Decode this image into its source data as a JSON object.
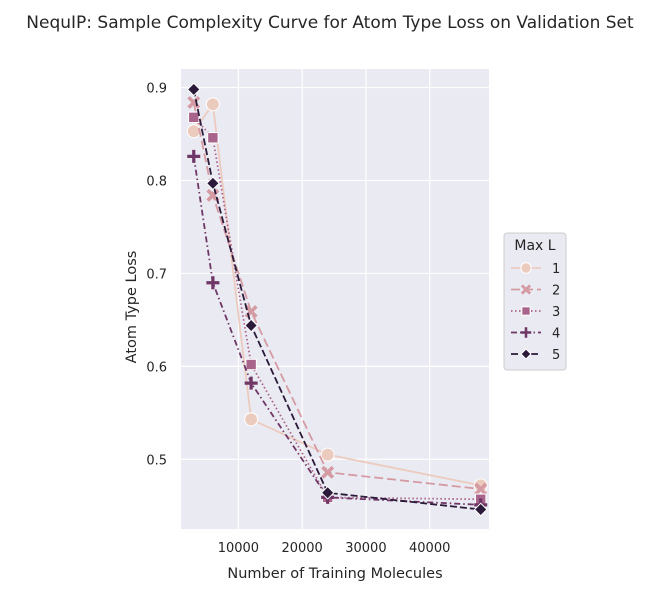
{
  "chart_data": {
    "type": "line",
    "title": "NequIP: Sample Complexity Curve for Atom Type Loss on Validation Set",
    "xlabel": "Number of Training Molecules",
    "ylabel": "Atom Type Loss",
    "xlim": [
      1000,
      49300
    ],
    "ylim": [
      0.425,
      0.92
    ],
    "xticks": [
      10000,
      20000,
      30000,
      40000
    ],
    "xtick_labels": [
      "10000",
      "20000",
      "30000",
      "40000"
    ],
    "yticks": [
      0.5,
      0.6,
      0.7,
      0.8,
      0.9
    ],
    "ytick_labels": [
      "0.5",
      "0.6",
      "0.7",
      "0.8",
      "0.9"
    ],
    "grid": true,
    "legend": {
      "title": "Max L",
      "placement": "right"
    },
    "series": [
      {
        "name": "1",
        "color": "#eccbbf",
        "marker": "circle",
        "dash": "solid",
        "x": [
          3000,
          6000,
          12000,
          24000,
          48000
        ],
        "y": [
          0.853,
          0.882,
          0.543,
          0.505,
          0.472
        ]
      },
      {
        "name": "2",
        "color": "#d49ba3",
        "marker": "x",
        "dash": "long",
        "x": [
          3000,
          6000,
          12000,
          24000,
          48000
        ],
        "y": [
          0.884,
          0.784,
          0.659,
          0.486,
          0.468
        ]
      },
      {
        "name": "3",
        "color": "#a9648c",
        "marker": "square",
        "dash": "dotted",
        "x": [
          3000,
          6000,
          12000,
          24000,
          48000
        ],
        "y": [
          0.868,
          0.846,
          0.602,
          0.459,
          0.457
        ]
      },
      {
        "name": "4",
        "color": "#6e3766",
        "marker": "plus",
        "dash": "dashdot",
        "x": [
          3000,
          6000,
          12000,
          24000,
          48000
        ],
        "y": [
          0.826,
          0.69,
          0.582,
          0.459,
          0.451
        ]
      },
      {
        "name": "5",
        "color": "#2b1a3a",
        "marker": "diamond",
        "dash": "dashed",
        "x": [
          3000,
          6000,
          12000,
          24000,
          48000
        ],
        "y": [
          0.898,
          0.797,
          0.644,
          0.464,
          0.446
        ]
      }
    ]
  }
}
